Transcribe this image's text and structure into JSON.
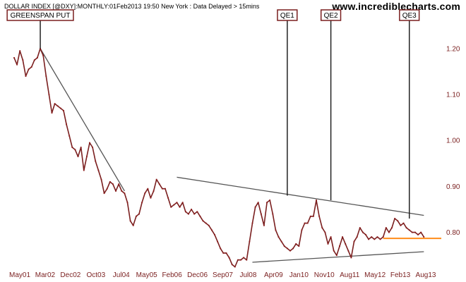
{
  "header": {
    "title": "DOLLAR INDEX [@DXY]:MONTHLY:01Feb2013 19:50 New York : Data Delayed > 15mins",
    "site": "www.incrediblecharts.com"
  },
  "colors": {
    "price_line": "#7a1f1f",
    "price_marker": "#8b1a1a",
    "trend_line": "#555555",
    "support_line": "#ff8c1a",
    "annotation_border": "#7a1f1f",
    "annotation_line": "#222222",
    "axis_text": "#7a1f1f"
  },
  "chart_data": {
    "type": "line",
    "title": "DOLLAR INDEX [@DXY]:MONTHLY",
    "x_tick_labels": [
      "May01",
      "Mar02",
      "Dec02",
      "Oct03",
      "Jul04",
      "May05",
      "Feb06",
      "Dec06",
      "Sep07",
      "Jul08",
      "Apr09",
      "Jan10",
      "Nov10",
      "Aug11",
      "May12",
      "Feb13",
      "Aug13"
    ],
    "xlim": [
      "2001-05",
      "2013-08"
    ],
    "y_tick_labels": [
      "0.80",
      "0.90",
      "1.00",
      "1.10",
      "1.20"
    ],
    "y_ticks": [
      0.8,
      0.9,
      1.0,
      1.1,
      1.2
    ],
    "ylim": [
      0.715,
      1.252
    ],
    "y_axis_side": "right",
    "grid": false,
    "series": [
      {
        "x": [
          "2001-05",
          "2001-06",
          "2001-07",
          "2001-08",
          "2001-09",
          "2001-10",
          "2001-11",
          "2001-12",
          "2002-01",
          "2002-02",
          "2002-03",
          "2002-04",
          "2002-05",
          "2002-06",
          "2002-07",
          "2002-08",
          "2002-09",
          "2002-10",
          "2002-11",
          "2002-12",
          "2003-01",
          "2003-02",
          "2003-03",
          "2003-04",
          "2003-05",
          "2003-06",
          "2003-07",
          "2003-08",
          "2003-09",
          "2003-10",
          "2003-11",
          "2003-12",
          "2004-01",
          "2004-02",
          "2004-03",
          "2004-04",
          "2004-05",
          "2004-06",
          "2004-07",
          "2004-08",
          "2004-09",
          "2004-10",
          "2004-11",
          "2004-12",
          "2005-01",
          "2005-02",
          "2005-03",
          "2005-04",
          "2005-05",
          "2005-06",
          "2005-07",
          "2005-08",
          "2005-09",
          "2005-10",
          "2005-11",
          "2005-12",
          "2006-01",
          "2006-02",
          "2006-03",
          "2006-04",
          "2006-05",
          "2006-06",
          "2006-07",
          "2006-08",
          "2006-09",
          "2006-10",
          "2006-11",
          "2006-12",
          "2007-01",
          "2007-02",
          "2007-03",
          "2007-04",
          "2007-05",
          "2007-06",
          "2007-07",
          "2007-08",
          "2007-09",
          "2007-10",
          "2007-11",
          "2007-12",
          "2008-01",
          "2008-02",
          "2008-03",
          "2008-04",
          "2008-05",
          "2008-06",
          "2008-07",
          "2008-08",
          "2008-09",
          "2008-10",
          "2008-11",
          "2008-12",
          "2009-01",
          "2009-02",
          "2009-03",
          "2009-04",
          "2009-05",
          "2009-06",
          "2009-07",
          "2009-08",
          "2009-09",
          "2009-10",
          "2009-11",
          "2009-12",
          "2010-01",
          "2010-02",
          "2010-03",
          "2010-04",
          "2010-05",
          "2010-06",
          "2010-07",
          "2010-08",
          "2010-09",
          "2010-10",
          "2010-11",
          "2010-12",
          "2011-01",
          "2011-02",
          "2011-03",
          "2011-04",
          "2011-05",
          "2011-06",
          "2011-07",
          "2011-08",
          "2011-09",
          "2011-10",
          "2011-11",
          "2011-12",
          "2012-01",
          "2012-02",
          "2012-03",
          "2012-04",
          "2012-05",
          "2012-06",
          "2012-07",
          "2012-08",
          "2012-09",
          "2012-10",
          "2012-11",
          "2012-12",
          "2013-01",
          "2013-02"
        ],
        "values": [
          1.18,
          1.165,
          1.195,
          1.175,
          1.14,
          1.155,
          1.16,
          1.175,
          1.18,
          1.2,
          1.185,
          1.14,
          1.1,
          1.06,
          1.08,
          1.075,
          1.07,
          1.065,
          1.035,
          1.01,
          0.985,
          0.98,
          0.965,
          0.985,
          0.935,
          0.965,
          0.995,
          0.985,
          0.955,
          0.935,
          0.915,
          0.885,
          0.895,
          0.91,
          0.905,
          0.89,
          0.905,
          0.89,
          0.885,
          0.865,
          0.825,
          0.815,
          0.835,
          0.84,
          0.865,
          0.885,
          0.895,
          0.875,
          0.89,
          0.915,
          0.905,
          0.895,
          0.895,
          0.875,
          0.855,
          0.86,
          0.865,
          0.855,
          0.865,
          0.845,
          0.84,
          0.85,
          0.84,
          0.845,
          0.835,
          0.825,
          0.82,
          0.815,
          0.805,
          0.795,
          0.78,
          0.765,
          0.755,
          0.755,
          0.745,
          0.73,
          0.725,
          0.74,
          0.74,
          0.745,
          0.74,
          0.78,
          0.82,
          0.855,
          0.865,
          0.84,
          0.815,
          0.865,
          0.87,
          0.84,
          0.805,
          0.79,
          0.78,
          0.77,
          0.765,
          0.76,
          0.765,
          0.775,
          0.77,
          0.805,
          0.82,
          0.82,
          0.835,
          0.835,
          0.87,
          0.835,
          0.81,
          0.8,
          0.775,
          0.79,
          0.76,
          0.75,
          0.77,
          0.79,
          0.775,
          0.76,
          0.745,
          0.78,
          0.79,
          0.81,
          0.8,
          0.795,
          0.785,
          0.79,
          0.785,
          0.79,
          0.785,
          0.79,
          0.81,
          0.8,
          0.81,
          0.83,
          0.825,
          0.815,
          0.82,
          0.81,
          0.805,
          0.8,
          0.8,
          0.795,
          0.8,
          0.79
        ]
      }
    ],
    "annotations": [
      {
        "label": "GREENSPAN PUT",
        "x": "2002-02",
        "y": 1.2
      },
      {
        "label": "QE1",
        "x": "2009-03",
        "y": 0.88
      },
      {
        "label": "QE2",
        "x": "2010-06",
        "y": 0.87
      },
      {
        "label": "QE3",
        "x": "2012-09",
        "y": 0.83
      }
    ],
    "trend_lines": [
      {
        "from": {
          "x": "2002-02",
          "y": 1.2
        },
        "to": {
          "x": "2004-07",
          "y": 0.89
        }
      },
      {
        "from": {
          "x": "2006-01",
          "y": 0.92
        },
        "to": {
          "x": "2013-02",
          "y": 0.837
        }
      },
      {
        "from": {
          "x": "2008-03",
          "y": 0.735
        },
        "to": {
          "x": "2013-02",
          "y": 0.758
        }
      }
    ],
    "support_line": {
      "y": 0.787,
      "x_from": "2011-12",
      "x_to": "2013-08"
    }
  }
}
